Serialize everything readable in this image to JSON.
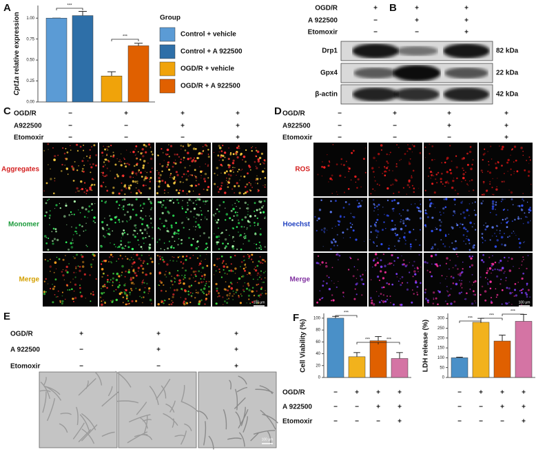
{
  "panel_letters": [
    "A",
    "B",
    "C",
    "D",
    "E",
    "F"
  ],
  "chart_data": [
    {
      "type": "bar",
      "ylabel_gene": "Cpt1a",
      "ylabel": "relative expression",
      "legend_title": "Group",
      "categories": [
        "Control + vehicle",
        "Control + A 922500",
        "OGD/R + vehicle",
        "OGD/R + A 922500"
      ],
      "values": [
        1.0,
        1.03,
        0.31,
        0.67
      ],
      "errors": [
        0,
        0.05,
        0.05,
        0.03
      ],
      "colors": [
        "#5b9bd5",
        "#2e6fa8",
        "#f0a30a",
        "#e06000"
      ],
      "ylim": [
        0,
        1.15
      ],
      "yticks": [
        {
          "value": 0,
          "label": "0.00"
        },
        {
          "value": 0.25,
          "label": "0.25"
        },
        {
          "value": 0.5,
          "label": "0.50"
        },
        {
          "value": 0.75,
          "label": "0.75"
        },
        {
          "value": 1,
          "label": "1.00"
        }
      ],
      "annotations": [
        "***",
        "***"
      ]
    },
    {
      "type": "bar",
      "ylabel": "Cell Viability (%)",
      "values": [
        100,
        35,
        62,
        32
      ],
      "errors": [
        3,
        7,
        7,
        10
      ],
      "colors": [
        "#4a90c8",
        "#f2b21c",
        "#e06000",
        "#d474a4"
      ],
      "ylim": [
        0,
        108
      ],
      "yticks": [
        0,
        20,
        40,
        60,
        80,
        100
      ],
      "annotations": [
        "***",
        "***",
        "***"
      ]
    },
    {
      "type": "bar",
      "ylabel": "LDH release (%)",
      "values": [
        100,
        280,
        185,
        285
      ],
      "errors": [
        3,
        20,
        30,
        35
      ],
      "colors": [
        "#4a90c8",
        "#f2b21c",
        "#e06000",
        "#d474a4"
      ],
      "ylim": [
        0,
        325
      ],
      "yticks": [
        0,
        50,
        100,
        150,
        200,
        250,
        300
      ],
      "annotations": [
        "***",
        "***",
        "***"
      ]
    }
  ],
  "f_conditions": [
    {
      "name": "OGD/R",
      "signs": [
        "−",
        "+",
        "+",
        "+"
      ]
    },
    {
      "name": "A 922500",
      "signs": [
        "−",
        "−",
        "+",
        "+"
      ]
    },
    {
      "name": "Etomoxir",
      "signs": [
        "−",
        "−",
        "−",
        "+"
      ]
    }
  ],
  "blot": {
    "conditions": [
      {
        "name": "OGD/R",
        "signs": [
          "+",
          "+",
          "+"
        ]
      },
      {
        "name": "A 922500",
        "signs": [
          "−",
          "+",
          "+"
        ]
      },
      {
        "name": "Etomoxir",
        "signs": [
          "−",
          "−",
          "+"
        ]
      }
    ],
    "proteins": [
      {
        "name": "Drp1",
        "size": "82 kDa"
      },
      {
        "name": "Gpx4",
        "size": "22 kDa"
      },
      {
        "name": "β-actin",
        "size": "42 kDa"
      }
    ]
  },
  "jc1": {
    "conditions": [
      {
        "name": "OGD/R",
        "signs": [
          "−",
          "+",
          "+",
          "+"
        ]
      },
      {
        "name": "A922500",
        "signs": [
          "−",
          "−",
          "+",
          "+"
        ]
      },
      {
        "name": "Etomoxir",
        "signs": [
          "−",
          "−",
          "−",
          "+"
        ]
      }
    ],
    "rows": [
      "Aggregates",
      "Monomer",
      "Merge"
    ],
    "scale_bar": "100 μm"
  },
  "ros": {
    "conditions": [
      {
        "name": "OGD/R",
        "signs": [
          "−",
          "+",
          "+",
          "+"
        ]
      },
      {
        "name": "A922500",
        "signs": [
          "−",
          "−",
          "+",
          "+"
        ]
      },
      {
        "name": "Etomoxir",
        "signs": [
          "−",
          "−",
          "−",
          "+"
        ]
      }
    ],
    "rows": [
      "ROS",
      "Hoechst",
      "Merge"
    ],
    "scale_bar": "100 μm"
  },
  "morphology": {
    "conditions": [
      {
        "name": "OGD/R",
        "signs": [
          "+",
          "+",
          "+"
        ]
      },
      {
        "name": "A 922500",
        "signs": [
          "−",
          "+",
          "+"
        ]
      },
      {
        "name": "Etomoxir",
        "signs": [
          "−",
          "−",
          "+"
        ]
      }
    ],
    "scale_bar": "100 μm"
  }
}
